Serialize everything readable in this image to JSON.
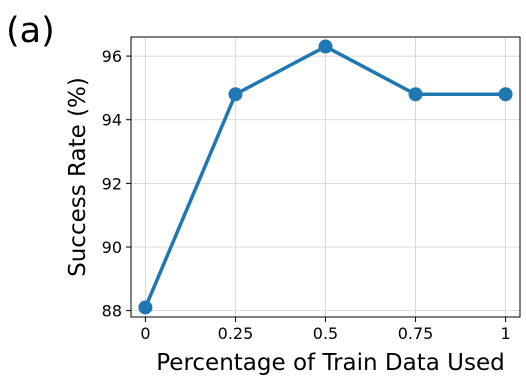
{
  "panel_label": "(a)",
  "chart_data": {
    "type": "line",
    "title": "",
    "xlabel": "Percentage of Train Data Used",
    "ylabel": "Success Rate (%)",
    "x": [
      0,
      0.25,
      0.5,
      0.75,
      1
    ],
    "x_tick_labels": [
      "0",
      "0.25",
      "0.5",
      "0.75",
      "1"
    ],
    "y_ticks": [
      88,
      90,
      92,
      94,
      96
    ],
    "y_tick_labels": [
      "88",
      "90",
      "92",
      "94",
      "96"
    ],
    "xlim": [
      -0.04,
      1.04
    ],
    "ylim": [
      87.8,
      96.6
    ],
    "grid": true,
    "legend": "none",
    "series": [
      {
        "values": [
          88.1,
          94.8,
          96.3,
          94.8,
          94.8
        ],
        "color": "#1f77b4",
        "marker": "circle"
      }
    ]
  }
}
